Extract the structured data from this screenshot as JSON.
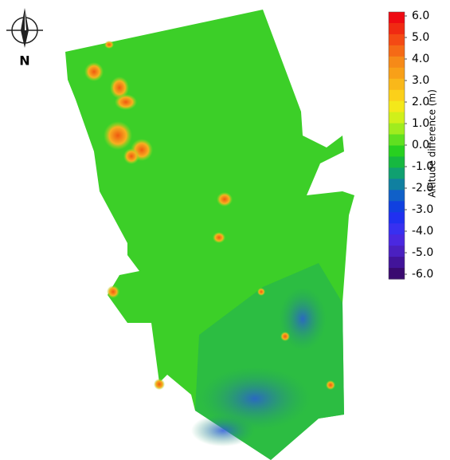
{
  "north_label": "N",
  "legend": {
    "title": "Altitude difference (m)",
    "ticks": [
      {
        "value": 6,
        "label": "6.0"
      },
      {
        "value": 5,
        "label": "5.0"
      },
      {
        "value": 4,
        "label": "4.0"
      },
      {
        "value": 3,
        "label": "3.0"
      },
      {
        "value": 2,
        "label": "2.0"
      },
      {
        "value": 1,
        "label": "1.0"
      },
      {
        "value": 0,
        "label": "0.0"
      },
      {
        "value": -1,
        "label": "-1.0"
      },
      {
        "value": -2,
        "label": "-2.0"
      },
      {
        "value": -3,
        "label": "-3.0"
      },
      {
        "value": -4,
        "label": "-4.0"
      },
      {
        "value": -5,
        "label": "-5.0"
      },
      {
        "value": -6,
        "label": "-6.0"
      }
    ],
    "colors": [
      "#ee0a12",
      "#f02a12",
      "#f44a14",
      "#f56a16",
      "#f68a18",
      "#f8a018",
      "#f9b81a",
      "#fbd01a",
      "#f4e81a",
      "#d0f01a",
      "#a0ec1e",
      "#60e020",
      "#28d020",
      "#16b840",
      "#10a070",
      "#1080a0",
      "#1060c8",
      "#1040e0",
      "#2030f0",
      "#3830f0",
      "#4a28e0",
      "#4a20c0",
      "#42149a",
      "#3a0a70"
    ]
  }
}
